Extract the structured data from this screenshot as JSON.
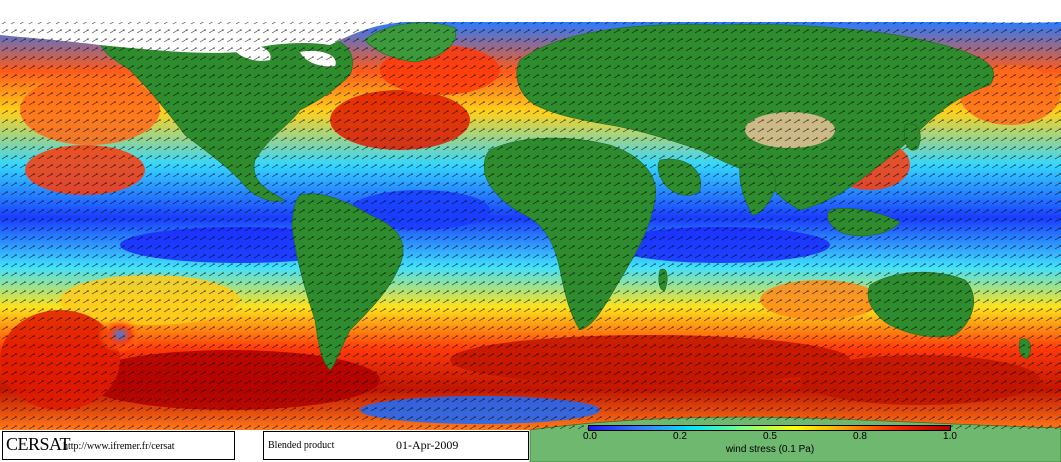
{
  "logo": {
    "text": "CERSAT",
    "url": "http://www.ifremer.fr/cersat"
  },
  "product": {
    "label": "Blended product",
    "date": "01-Apr-2009"
  },
  "colorbar": {
    "ticks": [
      "0.0",
      "0.2",
      "0.5",
      "0.8",
      "1.0"
    ],
    "tick_values": [
      0.0,
      0.25,
      0.5,
      0.75,
      1.0
    ],
    "title": "wind stress (0.1 Pa)",
    "scale_colors": [
      "#1a1aff",
      "#3a7bff",
      "#00e5ff",
      "#7fff7f",
      "#ffff00",
      "#ff9900",
      "#ff2200",
      "#b00000"
    ]
  },
  "map": {
    "land_color": "#2e8b2e",
    "highland_color": "#cbb987",
    "ice_color": "#ffffff",
    "arrow_color": "#000000"
  }
}
